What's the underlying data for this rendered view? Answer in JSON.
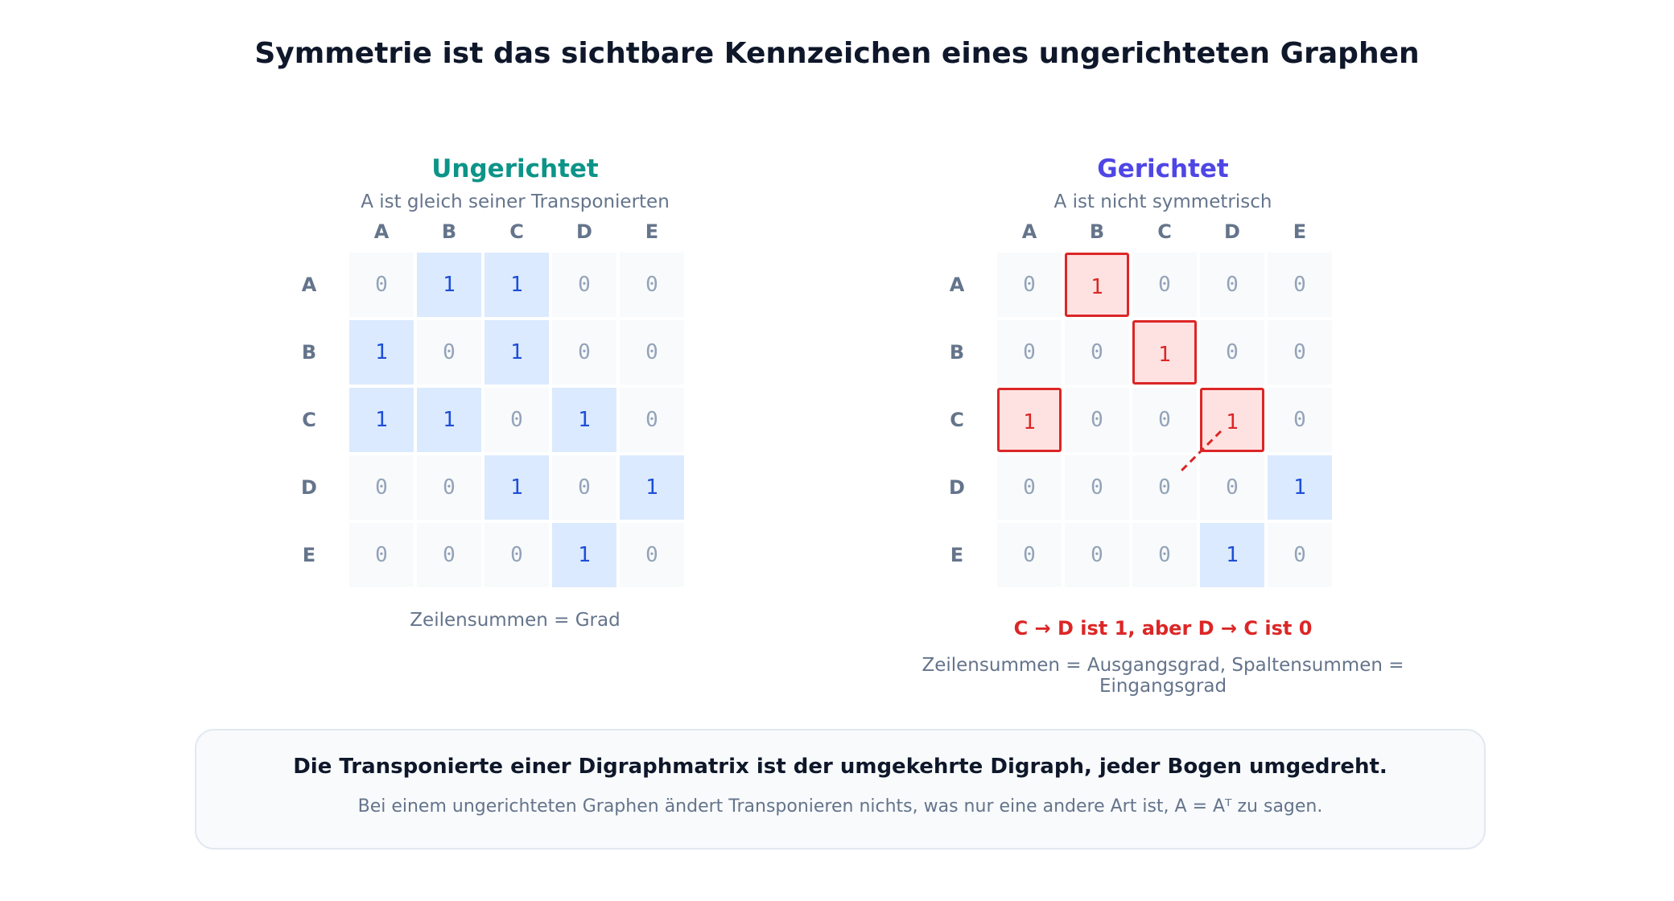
{
  "title": "Symmetrie ist das sichtbare Kennzeichen eines ungerichteten Graphen",
  "labels": [
    "A",
    "B",
    "C",
    "D",
    "E"
  ],
  "left": {
    "title": "Ungerichtet",
    "subtitle": "A ist gleich seiner Transponierten",
    "matrix": [
      [
        0,
        1,
        1,
        0,
        0
      ],
      [
        1,
        0,
        1,
        0,
        0
      ],
      [
        1,
        1,
        0,
        1,
        0
      ],
      [
        0,
        0,
        1,
        0,
        1
      ],
      [
        0,
        0,
        0,
        1,
        0
      ]
    ],
    "note": "Zeilensummen = Grad"
  },
  "right": {
    "title": "Gerichtet",
    "subtitle": "A ist nicht symmetrisch",
    "matrix": [
      [
        0,
        1,
        0,
        0,
        0
      ],
      [
        0,
        0,
        1,
        0,
        0
      ],
      [
        1,
        0,
        0,
        1,
        0
      ],
      [
        0,
        0,
        0,
        0,
        1
      ],
      [
        0,
        0,
        0,
        1,
        0
      ]
    ],
    "highlighted": [
      [
        0,
        1
      ],
      [
        1,
        2
      ],
      [
        2,
        0
      ],
      [
        2,
        3
      ]
    ],
    "warning": "C → D ist 1, aber D → C ist 0",
    "note": "Zeilensummen = Ausgangsgrad, Spaltensummen = Eingangsgrad"
  },
  "colors": {
    "undirected": "#0d9488",
    "directed": "#4f46e5",
    "one_fill": "#dbeafe",
    "one_text": "#1d4ed8",
    "zero_fill": "#f8fafc",
    "zero_text": "#94a3b8",
    "asym": "#dc2626",
    "asym_fill": "#fee2e2"
  },
  "callout": {
    "main": "Die Transponierte einer Digraphmatrix ist der umgekehrte Digraph, jeder Bogen umgedreht.",
    "sub": "Bei einem ungerichteten Graphen ändert Transponieren nichts, was nur eine andere Art ist, A = Aᵀ zu sagen."
  }
}
